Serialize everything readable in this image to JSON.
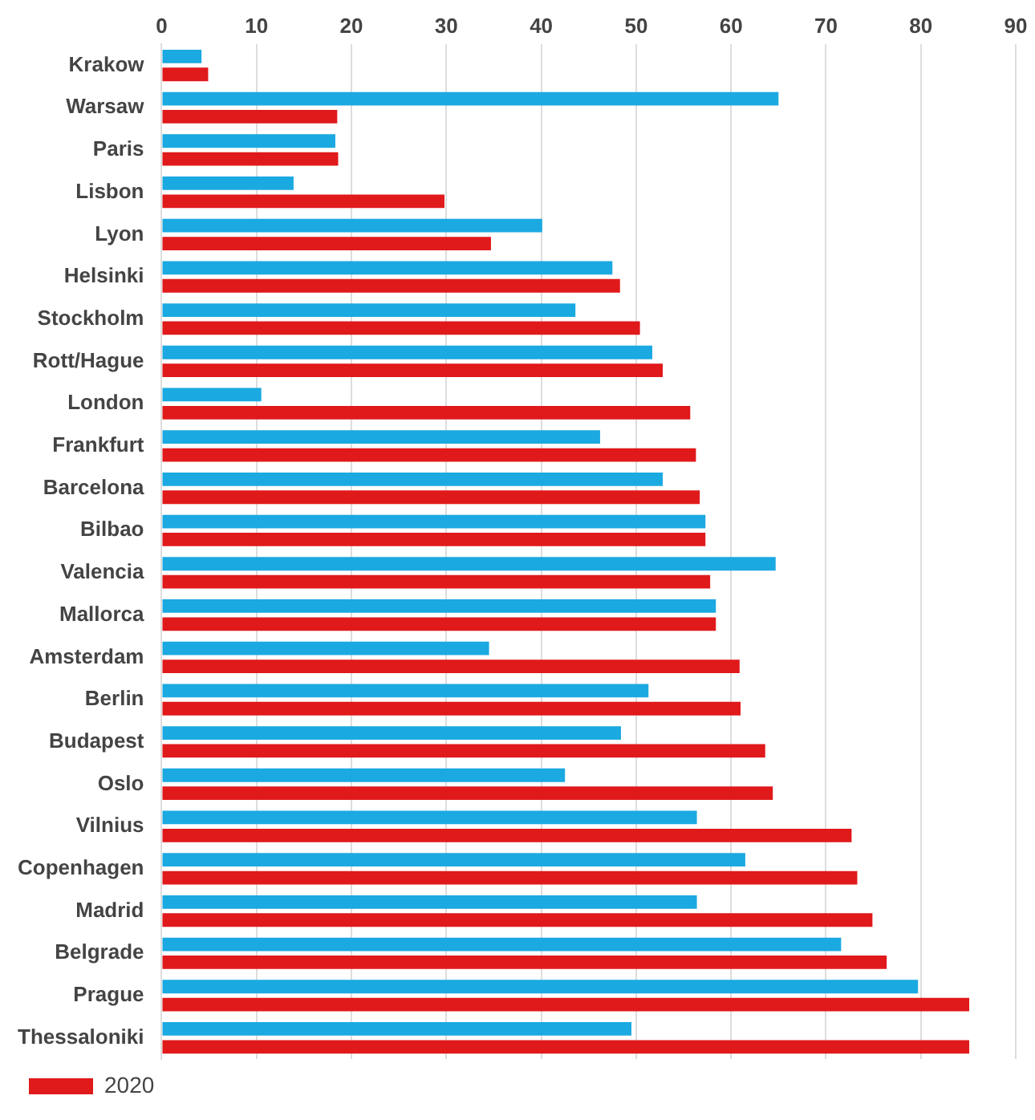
{
  "chart_data": {
    "type": "bar",
    "orientation": "horizontal",
    "categories": [
      "Krakow",
      "Warsaw",
      "Paris",
      "Lisbon",
      "Lyon",
      "Helsinki",
      "Stockholm",
      "Rott/Hague",
      "London",
      "Frankfurt",
      "Barcelona",
      "Bilbao",
      "Valencia",
      "Mallorca",
      "Amsterdam",
      "Berlin",
      "Budapest",
      "Oslo",
      "Vilnius",
      "Copenhagen",
      "Madrid",
      "Belgrade",
      "Prague",
      "Thessaloniki"
    ],
    "series": [
      {
        "color": "#1ba9e1",
        "values": [
          4.2,
          65,
          18.3,
          13.9,
          40.1,
          47.5,
          43.6,
          51.7,
          10.5,
          46.2,
          52.8,
          57.3,
          64.7,
          58.4,
          34.5,
          51.3,
          48.4,
          42.5,
          56.4,
          61.5,
          56.4,
          71.6,
          79.7,
          49.5
        ]
      },
      {
        "name": "2020",
        "color": "#e0191b",
        "values": [
          4.9,
          18.5,
          18.6,
          29.8,
          34.7,
          48.3,
          50.4,
          52.8,
          55.7,
          56.3,
          56.7,
          57.3,
          57.8,
          58.4,
          60.9,
          61.0,
          63.6,
          64.4,
          72.7,
          73.3,
          74.9,
          76.4,
          85.1,
          85.1
        ]
      }
    ],
    "xlim": [
      0,
      90
    ],
    "xticks": [
      0,
      10,
      20,
      30,
      40,
      50,
      60,
      70,
      80,
      90
    ],
    "grid": "x",
    "legend": "bottom left"
  }
}
